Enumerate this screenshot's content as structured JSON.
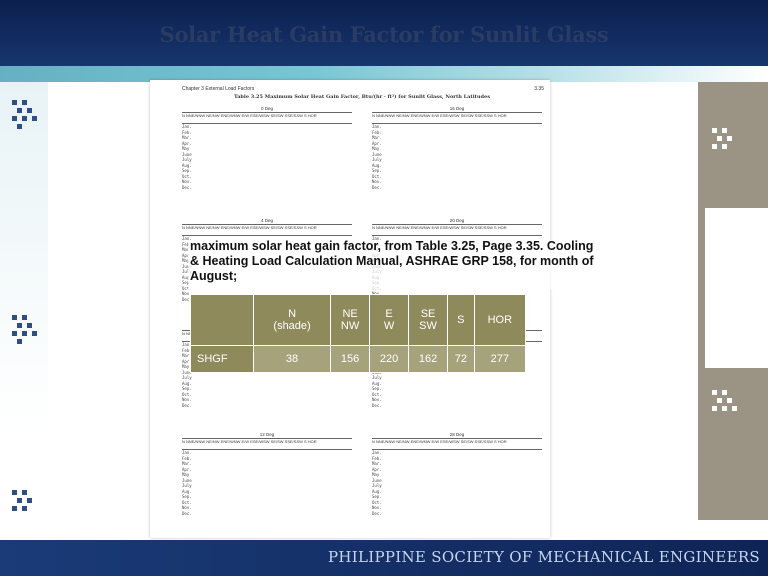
{
  "slide": {
    "title": "Solar Heat Gain Factor for Sunlit Glass",
    "footer": "PHILIPPINE SOCIETY OF MECHANICAL ENGINEERS"
  },
  "reference_page": {
    "chapter_header": "Chapter 3   External Load Factors",
    "page_number": "3.35",
    "table_caption": "Table 3.25   Maximum Solar Heat Gain Factor, Btu/(hr · ft²) for Sunlit Glass, North Latitudes",
    "sections": [
      "0 Deg",
      "16 Deg",
      "4 Deg",
      "20 Deg",
      "8 Deg",
      "24 Deg",
      "12 Deg",
      "28 Deg"
    ],
    "column_header": "N  NNE/NNW  NE/NW  ENE/WNW  E/W  ESE/WSW  SE/SW  SSE/SSW  S  HOR",
    "months": [
      "Jan.",
      "Feb.",
      "Mar.",
      "Apr.",
      "May",
      "June",
      "July",
      "Aug.",
      "Sep.",
      "Oct.",
      "Nov.",
      "Dec."
    ]
  },
  "overlay_text": "maximum solar heat gain factor, from Table 3.25, Page 3.35. Cooling & Heating Load Calculation Manual, ASHRAE GRP 158, for month of August;",
  "shgf_table": {
    "headers": [
      "",
      "N\n(shade)",
      "NE\nNW",
      "E\nW",
      "SE\nSW",
      "S",
      "HOR"
    ],
    "row_label": "SHGF",
    "values": [
      "38",
      "156",
      "220",
      "162",
      "72",
      "277"
    ]
  },
  "colors": {
    "header_bg": "#0c1f4e",
    "table_header_bg": "#8f8a5b",
    "table_cell_bg": "#a5a27c",
    "side_panel": "#9b9484"
  }
}
